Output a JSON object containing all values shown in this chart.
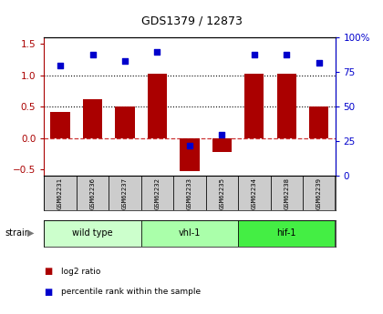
{
  "title": "GDS1379 / 12873",
  "samples": [
    "GSM62231",
    "GSM62236",
    "GSM62237",
    "GSM62232",
    "GSM62233",
    "GSM62235",
    "GSM62234",
    "GSM62238",
    "GSM62239"
  ],
  "log2_ratio": [
    0.42,
    0.62,
    0.5,
    1.02,
    -0.52,
    -0.22,
    1.02,
    1.02,
    0.5
  ],
  "percentile_rank": [
    80,
    88,
    83,
    90,
    22,
    30,
    88,
    88,
    82
  ],
  "groups": [
    {
      "label": "wild type",
      "start": 0,
      "end": 3,
      "color": "#ccffcc"
    },
    {
      "label": "vhl-1",
      "start": 3,
      "end": 6,
      "color": "#aaffaa"
    },
    {
      "label": "hif-1",
      "start": 6,
      "end": 9,
      "color": "#44ee44"
    }
  ],
  "bar_color": "#aa0000",
  "dot_color": "#0000cc",
  "ylim_left": [
    -0.6,
    1.6
  ],
  "ylim_right": [
    0,
    100
  ],
  "yticks_left": [
    -0.5,
    0.0,
    0.5,
    1.0,
    1.5
  ],
  "yticks_right": [
    0,
    25,
    50,
    75,
    100
  ],
  "hlines": [
    0.5,
    1.0
  ],
  "hline_zero_color": "#cc3333",
  "hline_color": "black",
  "background_color": "#ffffff",
  "plot_bg_color": "#ffffff",
  "legend_labels": [
    "log2 ratio",
    "percentile rank within the sample"
  ],
  "legend_colors": [
    "#aa0000",
    "#0000cc"
  ]
}
